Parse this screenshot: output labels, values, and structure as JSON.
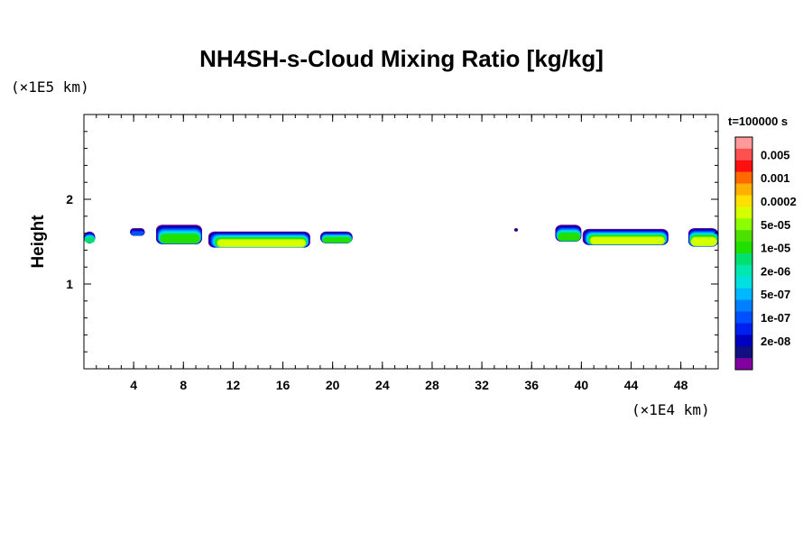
{
  "chart_data": {
    "type": "heatmap",
    "title": "NH4SH-s-Cloud Mixing Ratio [kg/kg]",
    "ylabel": "Height",
    "xlabel": "",
    "x_unit": "(×1E4 km)",
    "y_unit": "(×1E5 km)",
    "time_label": "t=100000 s",
    "xlim": [
      0,
      51
    ],
    "ylim": [
      0,
      3
    ],
    "x_ticks": [
      4,
      8,
      12,
      16,
      20,
      24,
      28,
      32,
      36,
      40,
      44,
      48
    ],
    "x_minor_step": 1,
    "y_ticks": [
      1,
      2
    ],
    "y_minor_step": 0.2,
    "grid": false,
    "colorbar": {
      "labels": [
        "0.005",
        "0.001",
        "0.0002",
        "5e-05",
        "1e-05",
        "2e-06",
        "5e-07",
        "1e-07",
        "2e-08"
      ],
      "colors": [
        "#ff9a9a",
        "#ff5050",
        "#ff1010",
        "#ff6a00",
        "#ffb000",
        "#ffe000",
        "#d6ff00",
        "#8cff00",
        "#4be000",
        "#20e000",
        "#00e070",
        "#00e8b0",
        "#00e0e0",
        "#00b8ff",
        "#0080ff",
        "#0050ff",
        "#0020f0",
        "#0000c0",
        "#101080",
        "#8000a0"
      ]
    },
    "cloud_patches": [
      {
        "x0": 0.0,
        "x1": 0.9,
        "ytop": 1.62,
        "ybot": 1.48,
        "peak": 9
      },
      {
        "x0": 3.7,
        "x1": 4.9,
        "ytop": 1.66,
        "ybot": 1.57,
        "peak": 4
      },
      {
        "x0": 5.8,
        "x1": 9.5,
        "ytop": 1.7,
        "ybot": 1.47,
        "peak": 10
      },
      {
        "x0": 10.0,
        "x1": 18.2,
        "ytop": 1.62,
        "ybot": 1.43,
        "peak": 13
      },
      {
        "x0": 19.0,
        "x1": 21.6,
        "ytop": 1.62,
        "ybot": 1.48,
        "peak": 10
      },
      {
        "x0": 34.6,
        "x1": 34.9,
        "ytop": 1.66,
        "ybot": 1.62,
        "peak": 1
      },
      {
        "x0": 37.9,
        "x1": 40.0,
        "ytop": 1.7,
        "ybot": 1.5,
        "peak": 10
      },
      {
        "x0": 40.1,
        "x1": 47.0,
        "ytop": 1.65,
        "ybot": 1.46,
        "peak": 13
      },
      {
        "x0": 48.6,
        "x1": 51.0,
        "ytop": 1.66,
        "ybot": 1.44,
        "peak": 13
      }
    ]
  }
}
